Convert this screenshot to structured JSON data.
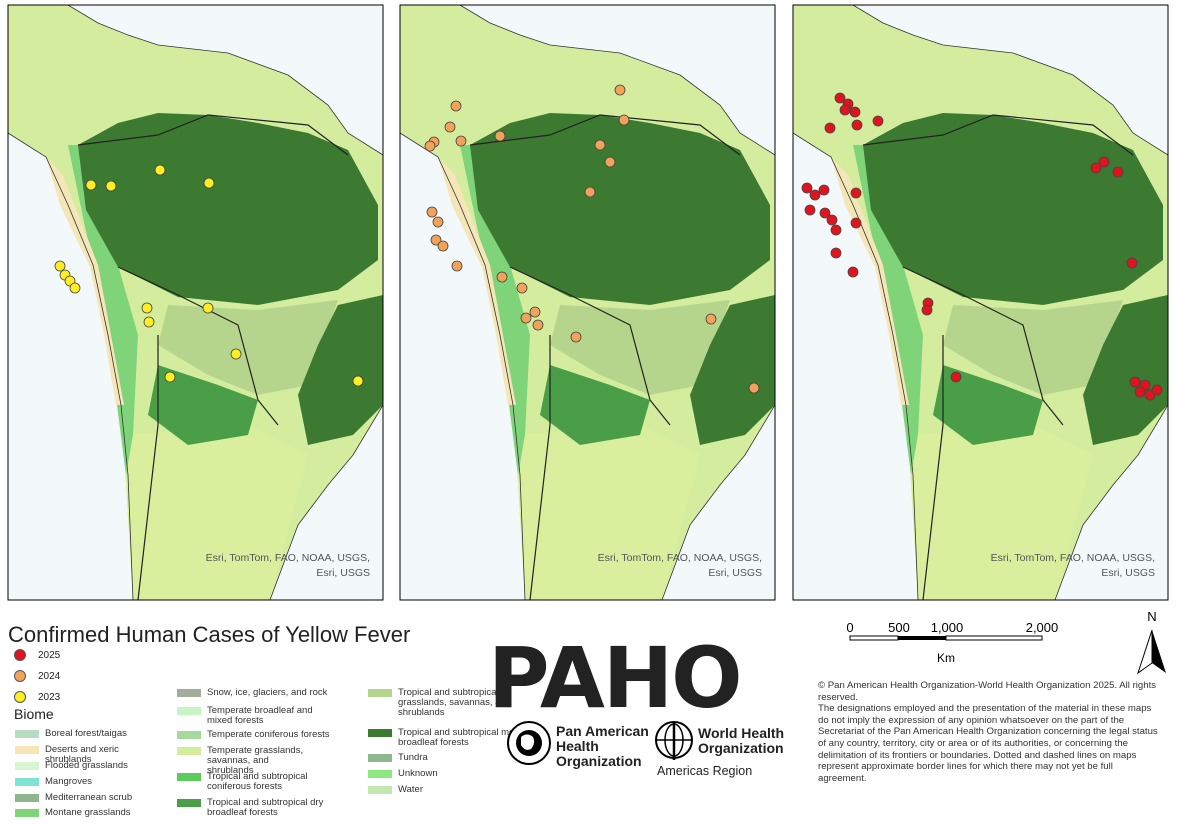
{
  "maps": [
    {
      "attribution": [
        "Esri, TomTom, FAO, NOAA, USGS,",
        "Esri, USGS"
      ]
    },
    {
      "attribution": [
        "Esri, TomTom, FAO, NOAA, USGS,",
        "Esri, USGS"
      ]
    },
    {
      "attribution": [
        "Esri, TomTom, FAO, NOAA, USGS,",
        "Esri, USGS"
      ]
    }
  ],
  "legend": {
    "title": "Confirmed Human Cases of Yellow Fever",
    "years": [
      {
        "label": "2025",
        "color": "#e0141e"
      },
      {
        "label": "2024",
        "color": "#f2a35a"
      },
      {
        "label": "2023",
        "color": "#ffee22"
      }
    ],
    "biome_heading": "Biome",
    "biomes": [
      {
        "label": "Boreal forest/taigas",
        "color": "#b8dcc2"
      },
      {
        "label": "Deserts and xeric shrublands",
        "color": "#f5e6b8"
      },
      {
        "label": "Flooded grasslands",
        "color": "#d8f5d2"
      },
      {
        "label": "Mangroves",
        "color": "#7fe3d3"
      },
      {
        "label": "Mediterranean scrub",
        "color": "#8fb58f"
      },
      {
        "label": "Montane grasslands",
        "color": "#7fd47a"
      },
      {
        "label": "Snow, ice, glaciers, and rock",
        "color": "#a3ab9a"
      },
      {
        "label": "Temperate broadleaf and mixed forests",
        "color": "#c8f3c4"
      },
      {
        "label": "Temperate coniferous forests",
        "color": "#a6da9c"
      },
      {
        "label": "Temperate grasslands, savannas, and shrublands",
        "color": "#d4ec9e"
      },
      {
        "label": "Tropical and subtropical coniferous forests",
        "color": "#5ccc5c"
      },
      {
        "label": "Tropical and subtropical dry broadleaf forests",
        "color": "#4a9e48"
      },
      {
        "label": "Tropical and subtropical grasslands, savannas, and shrublands",
        "color": "#b6d58c"
      },
      {
        "label": "Tropical and subtropical moist broadleaf forests",
        "color": "#3b7a30"
      },
      {
        "label": "Tundra",
        "color": "#8fb88f"
      },
      {
        "label": "Unknown",
        "color": "#8fe87f"
      },
      {
        "label": "Water",
        "color": "#c2e8b0"
      }
    ]
  },
  "scale_bar": {
    "labels": [
      "0",
      "500",
      "1,000",
      "2,000"
    ],
    "unit": "Km"
  },
  "north_arrow": "N",
  "logos": {
    "paho": "PAHO",
    "paho_name": [
      "Pan American",
      "Health",
      "Organization"
    ],
    "who_name": [
      "World Health",
      "Organization"
    ],
    "who_region": "Americas Region"
  },
  "disclaimer": [
    "© Pan American Health Organization-World Health Organization 2025. All rights reserved.",
    "The designations employed and the presentation of the material in these maps do not imply the expression of any opinion whatsoever on the part of the Secretariat of the Pan American Health Organization concerning the legal status of any country, territory, city or area or of its authorities, or concerning the delimitation of its frontiers or boundaries. Dotted and dashed lines on maps represent approximate border lines for which there may not yet be full agreement."
  ]
}
